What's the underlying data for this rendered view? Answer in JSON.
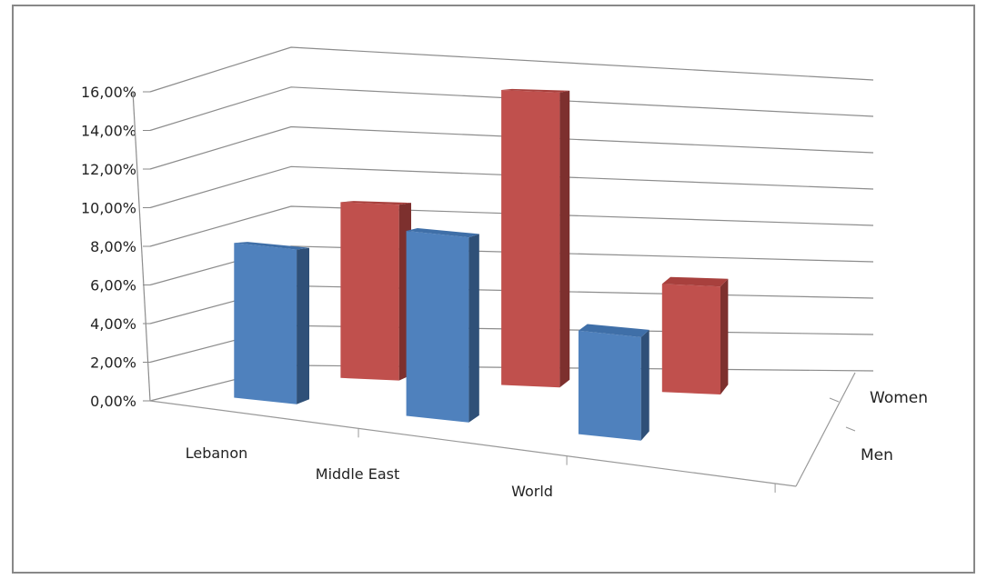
{
  "chart_data": {
    "type": "bar",
    "subtype": "3d-column",
    "categories": [
      "Lebanon",
      "Middle East",
      "World"
    ],
    "series": [
      {
        "name": "Men",
        "values": [
          8.0,
          9.7,
          5.5
        ],
        "color": "#4F81BD"
      },
      {
        "name": "Women",
        "values": [
          9.0,
          15.2,
          5.6
        ],
        "color": "#C0504D"
      }
    ],
    "yticks": [
      "0,00%",
      "2,00%",
      "4,00%",
      "6,00%",
      "8,00%",
      "10,00%",
      "12,00%",
      "14,00%",
      "16,00%"
    ],
    "ylim": [
      0,
      16
    ],
    "grid": true,
    "title": "",
    "xlabel": "",
    "ylabel": ""
  },
  "colors": {
    "border": "#888888",
    "grid": "#8c8c8c"
  }
}
